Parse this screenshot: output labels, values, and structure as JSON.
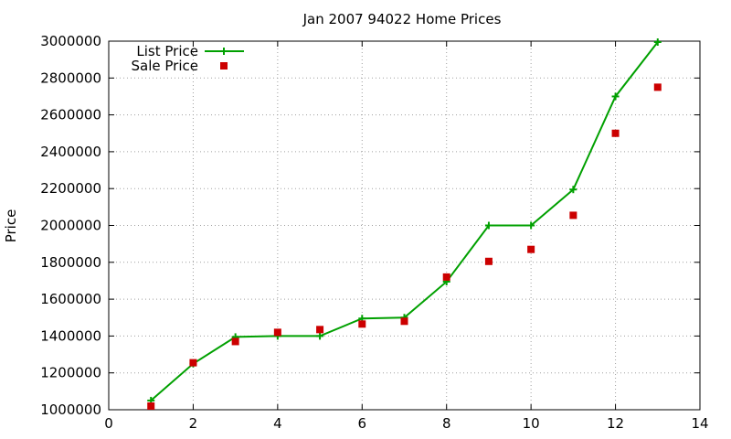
{
  "chart_data": {
    "type": "line",
    "title": "Jan 2007 94022 Home Prices",
    "xlabel": "",
    "ylabel": "Price",
    "xlim": [
      0,
      14
    ],
    "ylim": [
      1000000,
      3000000
    ],
    "x_ticks": [
      0,
      2,
      4,
      6,
      8,
      10,
      12,
      14
    ],
    "y_ticks": [
      1000000,
      1200000,
      1400000,
      1600000,
      1800000,
      2000000,
      2200000,
      2400000,
      2600000,
      2800000,
      3000000
    ],
    "x_tick_labels": [
      "0",
      "2",
      "4",
      "6",
      "8",
      "10",
      "12",
      "14"
    ],
    "y_tick_labels": [
      "1000000",
      "1200000",
      "1400000",
      "1600000",
      "1800000",
      "2000000",
      "2200000",
      "2400000",
      "2600000",
      "2800000",
      "3000000"
    ],
    "grid": true,
    "legend_position": "top-left",
    "series": [
      {
        "name": "List Price",
        "style": "linespoints",
        "marker": "plus",
        "color": "#00a000",
        "x": [
          1,
          2,
          3,
          4,
          5,
          6,
          7,
          8,
          9,
          10,
          11,
          12,
          13
        ],
        "y": [
          1050000,
          1250000,
          1395000,
          1400000,
          1400000,
          1495000,
          1500000,
          1695000,
          2000000,
          2000000,
          2195000,
          2700000,
          2995000
        ]
      },
      {
        "name": "Sale Price",
        "style": "points",
        "marker": "square",
        "color": "#cc0000",
        "x": [
          1,
          2,
          3,
          4,
          5,
          6,
          7,
          8,
          9,
          10,
          11,
          12,
          13
        ],
        "y": [
          1020000,
          1255000,
          1370000,
          1420000,
          1435000,
          1465000,
          1480000,
          1720000,
          1805000,
          1870000,
          2055000,
          2500000,
          2750000
        ]
      }
    ]
  }
}
